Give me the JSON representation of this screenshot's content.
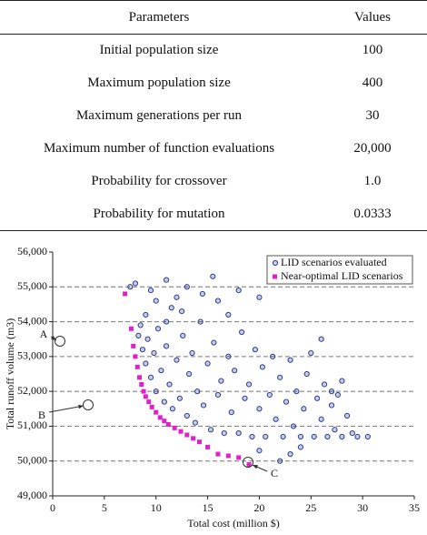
{
  "table": {
    "header": [
      "Parameters",
      "Values"
    ],
    "rows": [
      [
        "Initial population size",
        "100"
      ],
      [
        "Maximum population size",
        "400"
      ],
      [
        "Maximum generations per run",
        "30"
      ],
      [
        "Maximum number of function evaluations",
        "20,000"
      ],
      [
        "Probability for crossover",
        "1.0"
      ],
      [
        "Probability for mutation",
        "0.0333"
      ]
    ]
  },
  "chart_data": {
    "type": "scatter",
    "x_label": "Total cost (million $)",
    "y_label": "Total runoff volume (m3)",
    "xlim": [
      0,
      35
    ],
    "xticks": [
      0,
      5,
      10,
      15,
      20,
      25,
      30,
      35
    ],
    "ylim": [
      49000,
      56000
    ],
    "yticks": [
      {
        "value": 49000,
        "label": "49,000"
      },
      {
        "value": 50000,
        "label": "50,000"
      },
      {
        "value": 51000,
        "label": "51,000"
      },
      {
        "value": 52000,
        "label": "52,000"
      },
      {
        "value": 53000,
        "label": "53,000"
      },
      {
        "value": 54000,
        "label": "54,000"
      },
      {
        "value": 55000,
        "label": "55,000"
      },
      {
        "value": 56000,
        "label": "56,000"
      }
    ],
    "grid": true,
    "legend": "upper right",
    "annotations": [
      "A",
      "B",
      "C"
    ],
    "series": [
      {
        "name": "LID scenarios evaluated",
        "color": "#2c3d8f",
        "marker": "circle",
        "x": [
          7.5,
          8,
          9.5,
          10,
          11,
          12,
          13,
          14.5,
          15.5,
          16,
          18,
          20,
          11.5,
          9,
          8.5,
          8.3,
          8.7,
          9,
          9.2,
          9.5,
          9.8,
          10,
          10.2,
          10.5,
          10.8,
          11,
          11.3,
          11.6,
          12,
          12.3,
          12.6,
          13,
          13.2,
          13.5,
          13.8,
          14,
          14.3,
          14.6,
          15,
          15.3,
          15.6,
          16,
          16.3,
          16.6,
          17,
          17.3,
          17.6,
          18,
          18.3,
          18.6,
          19,
          19.3,
          19.6,
          20,
          20.3,
          20.6,
          21,
          21.3,
          21.6,
          22,
          22.3,
          22.6,
          23,
          23.3,
          23.6,
          24,
          24.3,
          24.6,
          25,
          25.3,
          25.6,
          26,
          26.3,
          26.6,
          27,
          27.3,
          27.6,
          28,
          28.5,
          29,
          29.5,
          30.5,
          22,
          23,
          20,
          24,
          27,
          28,
          26,
          11,
          12.5,
          17
        ],
        "values": [
          55000,
          55100,
          54900,
          54600,
          55200,
          54700,
          55000,
          54800,
          55300,
          54600,
          54900,
          54700,
          54400,
          54200,
          53900,
          53600,
          53200,
          52800,
          53500,
          52400,
          53100,
          52000,
          53800,
          52600,
          51700,
          53300,
          52200,
          51500,
          52900,
          51800,
          53600,
          51300,
          52500,
          53100,
          51100,
          52000,
          54000,
          51600,
          52800,
          50900,
          53400,
          51900,
          52300,
          50800,
          53000,
          51400,
          52600,
          50800,
          53700,
          51800,
          52200,
          50700,
          53200,
          51500,
          52700,
          50700,
          51900,
          53000,
          51200,
          52400,
          50700,
          51700,
          52900,
          51000,
          52000,
          50700,
          51500,
          52500,
          53100,
          50700,
          51800,
          51200,
          52200,
          50700,
          51600,
          50900,
          51900,
          50700,
          51300,
          50800,
          50700,
          50700,
          50000,
          50200,
          50300,
          50400,
          52000,
          52300,
          53500,
          54000,
          54300,
          54200
        ]
      },
      {
        "name": "Near-optimal LID scenarios",
        "color": "#e020c8",
        "marker": "square",
        "x": [
          7,
          7.6,
          7.8,
          8,
          8.2,
          8.4,
          8.6,
          8.8,
          9,
          9.3,
          9.6,
          10,
          10.4,
          10.8,
          11.2,
          11.8,
          12.4,
          13,
          13.6,
          14.2,
          15,
          16,
          17,
          18,
          19
        ],
        "values": [
          54800,
          53800,
          53300,
          53000,
          52700,
          52400,
          52200,
          52000,
          51850,
          51700,
          51550,
          51400,
          51250,
          51150,
          51050,
          50950,
          50850,
          50750,
          50650,
          50550,
          50400,
          50200,
          50150,
          50100,
          49900
        ]
      }
    ]
  }
}
